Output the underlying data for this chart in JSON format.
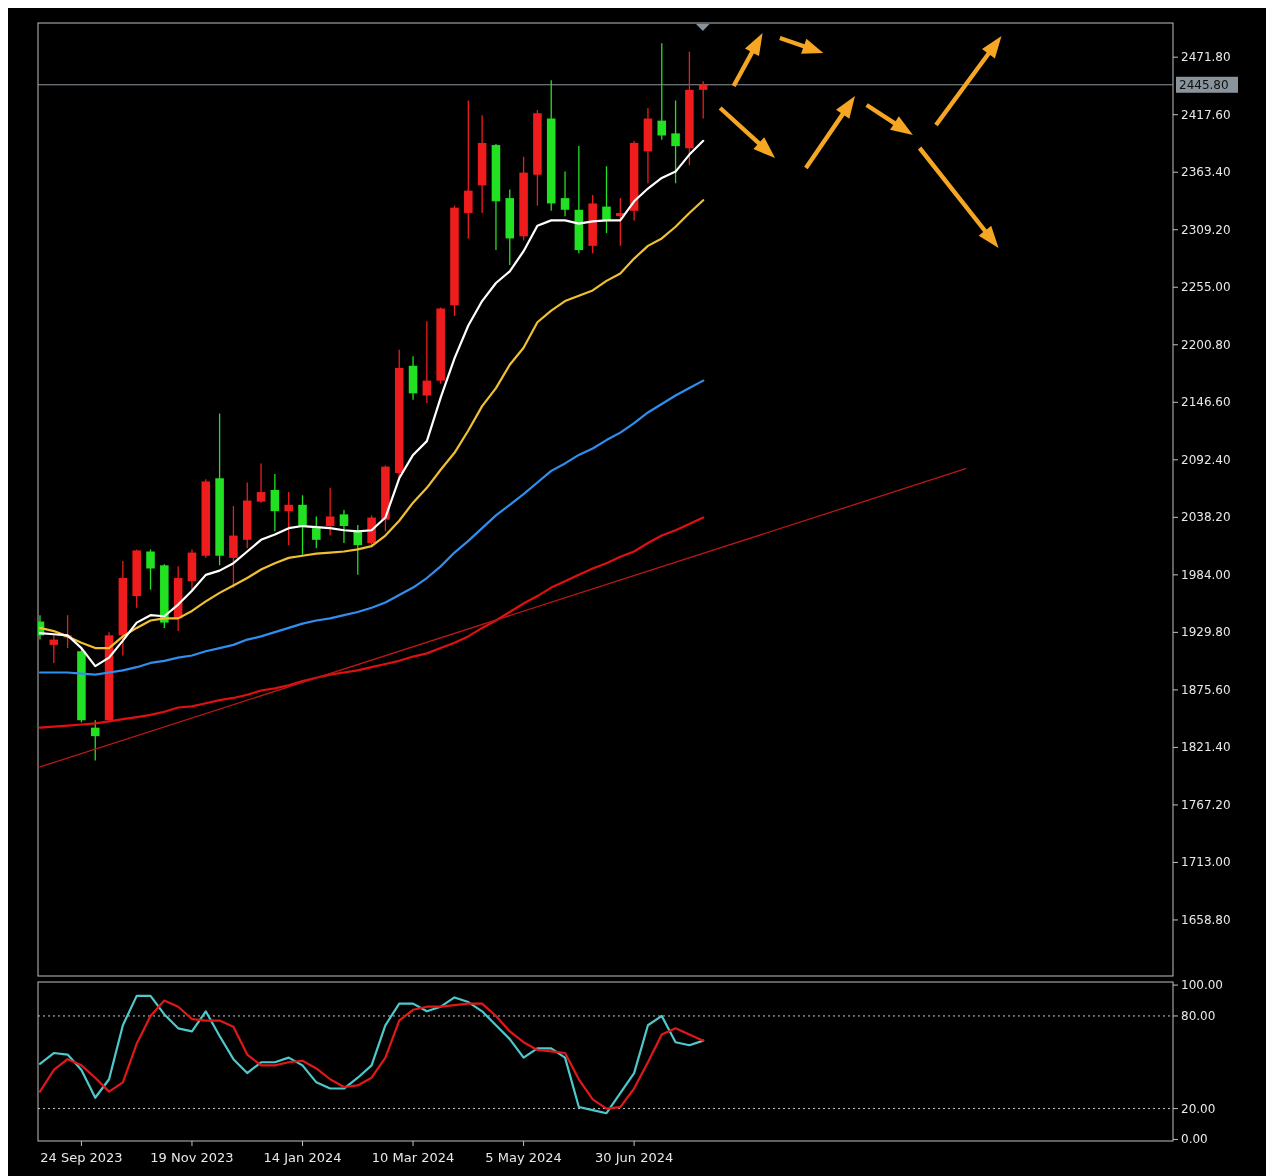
{
  "chart_data": [
    {
      "type": "candlestick",
      "tick_labels": "y",
      "xlim": [
        "2023-09-02",
        "2025-03-30"
      ],
      "ylim": [
        1606,
        2504
      ],
      "yticks": [
        {
          "value": 1658.8,
          "label": "1658.80"
        },
        {
          "value": 1713,
          "label": "1713.00"
        },
        {
          "value": 1767.2,
          "label": "1767.20"
        },
        {
          "value": 1821.4,
          "label": "1821.40"
        },
        {
          "value": 1875.6,
          "label": "1875.60"
        },
        {
          "value": 1929.8,
          "label": "1929.80"
        },
        {
          "value": 1984,
          "label": "1984.00"
        },
        {
          "value": 2038.2,
          "label": "2038.20"
        },
        {
          "value": 2092.4,
          "label": "2092.40"
        },
        {
          "value": 2146.6,
          "label": "2146.60"
        },
        {
          "value": 2200.8,
          "label": "2200.80"
        },
        {
          "value": 2255,
          "label": "2255.00"
        },
        {
          "value": 2309.2,
          "label": "2309.20"
        },
        {
          "value": 2363.4,
          "label": "2363.40"
        },
        {
          "value": 2417.6,
          "label": "2417.60"
        },
        {
          "value": 2471.8,
          "label": "2471.80"
        }
      ],
      "x": [
        "2023-09-03",
        "2023-09-10",
        "2023-09-17",
        "2023-09-24",
        "2023-10-01",
        "2023-10-08",
        "2023-10-15",
        "2023-10-22",
        "2023-10-29",
        "2023-11-05",
        "2023-11-12",
        "2023-11-19",
        "2023-11-26",
        "2023-12-03",
        "2023-12-10",
        "2023-12-17",
        "2023-12-24",
        "2023-12-31",
        "2024-01-07",
        "2024-01-14",
        "2024-01-21",
        "2024-01-28",
        "2024-02-04",
        "2024-02-11",
        "2024-02-18",
        "2024-02-25",
        "2024-03-03",
        "2024-03-10",
        "2024-03-17",
        "2024-03-24",
        "2024-03-31",
        "2024-04-07",
        "2024-04-14",
        "2024-04-21",
        "2024-04-28",
        "2024-05-05",
        "2024-05-12",
        "2024-05-19",
        "2024-05-26",
        "2024-06-02",
        "2024-06-09",
        "2024-06-16",
        "2024-06-23",
        "2024-06-30",
        "2024-07-07",
        "2024-07-14",
        "2024-07-21",
        "2024-07-28",
        "2024-08-04"
      ],
      "ref_lines": [
        {
          "axis": "y",
          "value": 2445.8,
          "label": "2445.80",
          "color": "#8a949c"
        }
      ],
      "series": [
        {
          "type": "line",
          "color": "#e01010",
          "values": [
            1840,
            1841,
            1842,
            1843,
            1844,
            1846,
            1848,
            1850,
            1852,
            1855,
            1859,
            1860,
            1863,
            1866,
            1868,
            1871,
            1875,
            1877,
            1880,
            1884,
            1887,
            1890,
            1892,
            1894,
            1897,
            1900,
            1903,
            1907,
            1910,
            1915,
            1920,
            1926,
            1934,
            1941,
            1949,
            1957,
            1964,
            1972,
            1978,
            1984,
            1990,
            1995,
            2001,
            2006,
            2014,
            2021,
            2026,
            2032,
            2038
          ]
        },
        {
          "type": "line",
          "color": "#b81818",
          "x": [
            "2023-09-03",
            "2024-12-15"
          ],
          "values": [
            1803,
            2084
          ]
        },
        {
          "type": "line",
          "color": "#2f8ff0",
          "values": [
            1892,
            1892,
            1892,
            1891,
            1890,
            1892,
            1894,
            1897,
            1901,
            1903,
            1906,
            1908,
            1912,
            1915,
            1918,
            1923,
            1926,
            1930,
            1934,
            1938,
            1941,
            1943,
            1946,
            1949,
            1953,
            1958,
            1965,
            1972,
            1981,
            1992,
            2005,
            2016,
            2028,
            2040,
            2050,
            2060,
            2071,
            2082,
            2089,
            2097,
            2103,
            2111,
            2118,
            2127,
            2137,
            2145,
            2153,
            2160,
            2167
          ]
        },
        {
          "type": "line",
          "color": "#f0c030",
          "values": [
            1934,
            1931,
            1926,
            1920,
            1915,
            1915,
            1926,
            1934,
            1941,
            1943,
            1943,
            1950,
            1959,
            1967,
            1974,
            1981,
            1989,
            1995,
            2000,
            2002,
            2004,
            2005,
            2006,
            2008,
            2011,
            2021,
            2035,
            2052,
            2066,
            2083,
            2099,
            2120,
            2143,
            2160,
            2182,
            2198,
            2222,
            2233,
            2242,
            2247,
            2252,
            2261,
            2268,
            2282,
            2294,
            2301,
            2312,
            2325,
            2337
          ]
        },
        {
          "type": "line",
          "color": "#ffffff",
          "values": [
            1929,
            1928,
            1927,
            1915,
            1898,
            1906,
            1922,
            1939,
            1946,
            1945,
            1956,
            1969,
            1984,
            1988,
            1995,
            2006,
            2017,
            2022,
            2028,
            2030,
            2029,
            2028,
            2026,
            2025,
            2026,
            2038,
            2075,
            2097,
            2110,
            2151,
            2188,
            2219,
            2242,
            2259,
            2270,
            2289,
            2313,
            2318,
            2318,
            2315,
            2317,
            2318,
            2318,
            2336,
            2348,
            2358,
            2364,
            2380,
            2393
          ]
        },
        {
          "ohlc": [
            [
              1940,
              1946,
              1923,
              1927
            ],
            [
              1918,
              1927,
              1901,
              1923
            ],
            [
              1925,
              1946,
              1915,
              1927
            ],
            [
              1912,
              1915,
              1845,
              1847
            ],
            [
              1840,
              1847,
              1809,
              1832
            ],
            [
              1847,
              1930,
              1845,
              1927
            ],
            [
              1927,
              1997,
              1908,
              1981
            ],
            [
              1964,
              2008,
              1953,
              2007
            ],
            [
              2006,
              2008,
              1970,
              1990
            ],
            [
              1993,
              1994,
              1934,
              1939
            ],
            [
              1943,
              1992,
              1931,
              1981
            ],
            [
              1978,
              2008,
              1969,
              2005
            ],
            [
              2002,
              2074,
              2000,
              2072
            ],
            [
              2075,
              2136,
              1993,
              2002
            ],
            [
              2000,
              2049,
              1972,
              2021
            ],
            [
              2017,
              2071,
              2009,
              2054
            ],
            [
              2053,
              2089,
              2052,
              2062
            ],
            [
              2064,
              2079,
              2025,
              2044
            ],
            [
              2044,
              2062,
              2012,
              2050
            ],
            [
              2050,
              2059,
              2003,
              2030
            ],
            [
              2028,
              2039,
              2009,
              2017
            ],
            [
              2030,
              2066,
              2021,
              2039
            ],
            [
              2041,
              2045,
              2014,
              2030
            ],
            [
              2026,
              2031,
              1984,
              2012
            ],
            [
              2014,
              2040,
              2012,
              2038
            ],
            [
              2036,
              2087,
              2025,
              2086
            ],
            [
              2080,
              2196,
              2075,
              2179
            ],
            [
              2181,
              2190,
              2149,
              2155
            ],
            [
              2153,
              2223,
              2146,
              2167
            ],
            [
              2167,
              2236,
              2164,
              2235
            ],
            [
              2238,
              2332,
              2228,
              2330
            ],
            [
              2325,
              2431,
              2301,
              2346
            ],
            [
              2351,
              2417,
              2325,
              2391
            ],
            [
              2389,
              2390,
              2290,
              2336
            ],
            [
              2339,
              2347,
              2276,
              2301
            ],
            [
              2303,
              2378,
              2299,
              2363
            ],
            [
              2361,
              2422,
              2332,
              2419
            ],
            [
              2414,
              2450,
              2327,
              2334
            ],
            [
              2339,
              2364,
              2322,
              2328
            ],
            [
              2328,
              2388,
              2287,
              2290
            ],
            [
              2294,
              2342,
              2287,
              2334
            ],
            [
              2331,
              2369,
              2306,
              2318
            ],
            [
              2322,
              2339,
              2294,
              2325
            ],
            [
              2327,
              2393,
              2318,
              2391
            ],
            [
              2383,
              2424,
              2353,
              2414
            ],
            [
              2412,
              2485,
              2394,
              2398
            ],
            [
              2400,
              2431,
              2353,
              2388
            ],
            [
              2386,
              2477,
              2370,
              2441
            ],
            [
              2441,
              2449,
              2414,
              2446
            ]
          ],
          "colors": [
            "#22e022",
            "#ee1c1c",
            "#ee1c1c",
            "#22e022",
            "#22e022",
            "#ee1c1c",
            "#ee1c1c",
            "#ee1c1c",
            "#22e022",
            "#22e022",
            "#ee1c1c",
            "#ee1c1c",
            "#ee1c1c",
            "#22e022",
            "#ee1c1c",
            "#ee1c1c",
            "#ee1c1c",
            "#22e022",
            "#ee1c1c",
            "#22e022",
            "#22e022",
            "#ee1c1c",
            "#22e022",
            "#22e022",
            "#ee1c1c",
            "#ee1c1c",
            "#ee1c1c",
            "#22e022",
            "#ee1c1c",
            "#ee1c1c",
            "#ee1c1c",
            "#ee1c1c",
            "#ee1c1c",
            "#22e022",
            "#22e022",
            "#ee1c1c",
            "#ee1c1c",
            "#22e022",
            "#22e022",
            "#22e022",
            "#ee1c1c",
            "#22e022",
            "#ee1c1c",
            "#ee1c1c",
            "#ee1c1c",
            "#22e022",
            "#22e022",
            "#ee1c1c",
            "#ee1c1c"
          ]
        }
      ]
    },
    {
      "type": "line",
      "xlim": [
        "2023-09-02",
        "2025-03-30"
      ],
      "ylim": [
        -1,
        102
      ],
      "xticks": [
        {
          "value": "2023-09-24",
          "label": "24 Sep 2023"
        },
        {
          "value": "2023-11-19",
          "label": "19 Nov 2023"
        },
        {
          "value": "2024-01-14",
          "label": "14 Jan 2024"
        },
        {
          "value": "2024-03-10",
          "label": "10 Mar 2024"
        },
        {
          "value": "2024-05-05",
          "label": "5 May 2024"
        },
        {
          "value": "2024-06-30",
          "label": "30 Jun 2024"
        }
      ],
      "yticks": [
        {
          "value": 0,
          "label": "0.00"
        },
        {
          "value": 20,
          "label": "20.00"
        },
        {
          "value": 80,
          "label": "80.00"
        },
        {
          "value": 100,
          "label": "100.00"
        }
      ],
      "x": [
        "2023-09-03",
        "2023-09-10",
        "2023-09-17",
        "2023-09-24",
        "2023-10-01",
        "2023-10-08",
        "2023-10-15",
        "2023-10-22",
        "2023-10-29",
        "2023-11-05",
        "2023-11-12",
        "2023-11-19",
        "2023-11-26",
        "2023-12-03",
        "2023-12-10",
        "2023-12-17",
        "2023-12-24",
        "2023-12-31",
        "2024-01-07",
        "2024-01-14",
        "2024-01-21",
        "2024-01-28",
        "2024-02-04",
        "2024-02-11",
        "2024-02-18",
        "2024-02-25",
        "2024-03-03",
        "2024-03-10",
        "2024-03-17",
        "2024-03-24",
        "2024-03-31",
        "2024-04-07",
        "2024-04-14",
        "2024-04-21",
        "2024-04-28",
        "2024-05-05",
        "2024-05-12",
        "2024-05-19",
        "2024-05-26",
        "2024-06-02",
        "2024-06-09",
        "2024-06-16",
        "2024-06-23",
        "2024-06-30",
        "2024-07-07",
        "2024-07-14",
        "2024-07-21",
        "2024-07-28",
        "2024-08-04"
      ],
      "ref_lines": [
        {
          "axis": "y",
          "value": 80,
          "color": "#c8c8c8",
          "line_style": "dotted"
        },
        {
          "axis": "y",
          "value": 20,
          "color": "#c8c8c8",
          "line_style": "dotted"
        }
      ],
      "series": [
        {
          "color": "#4fc8cc",
          "values": [
            49,
            56,
            55,
            45,
            27,
            39,
            74,
            93,
            93,
            81,
            72,
            70,
            83,
            67,
            52,
            43,
            50,
            50,
            53,
            48,
            37,
            33,
            33,
            40,
            48,
            74,
            88,
            88,
            83,
            86,
            92,
            89,
            83,
            74,
            65,
            53,
            59,
            59,
            53,
            21,
            19,
            17,
            30,
            43,
            74,
            80,
            63,
            61,
            64
          ]
        },
        {
          "color": "#e01818",
          "values": [
            31,
            45,
            52,
            48,
            40,
            31,
            37,
            62,
            80,
            90,
            86,
            78,
            77,
            77,
            73,
            55,
            48,
            48,
            50,
            51,
            46,
            39,
            34,
            35,
            40,
            53,
            77,
            84,
            86,
            86,
            87,
            88,
            88,
            80,
            70,
            63,
            58,
            57,
            56,
            39,
            26,
            20,
            21,
            33,
            50,
            68,
            72,
            68,
            64
          ]
        }
      ]
    }
  ]
}
